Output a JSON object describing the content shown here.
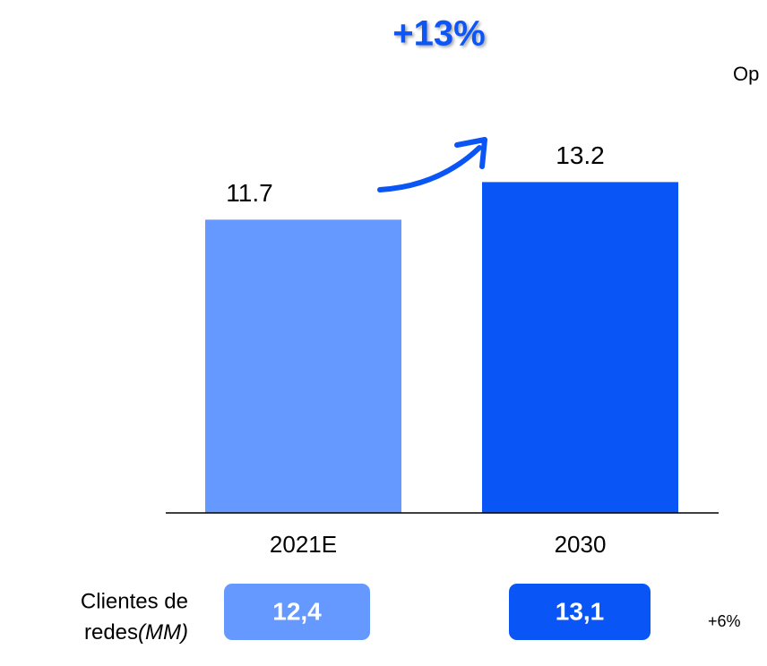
{
  "chart_data": {
    "type": "bar",
    "annotation": "+13%",
    "clipped_text": "Op",
    "categories": [
      "2021E",
      "2030"
    ],
    "values": [
      11.7,
      13.2
    ],
    "colors": [
      "#6699ff",
      "#0a55f5"
    ],
    "ylim": [
      0,
      15
    ],
    "bottom_row": {
      "label_line1": "Clientes de",
      "label_line2": "redes",
      "label_unit": "(MM)",
      "values": [
        "12,4",
        "13,1"
      ],
      "change": "+6%"
    }
  }
}
